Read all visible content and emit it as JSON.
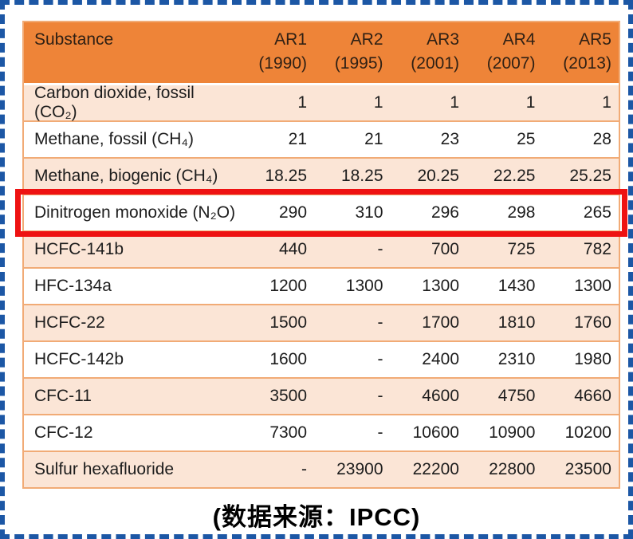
{
  "chart_data": {
    "type": "table",
    "header": {
      "substance_label": "Substance",
      "reports": [
        {
          "name": "AR1",
          "year": "(1990)"
        },
        {
          "name": "AR2",
          "year": "(1995)"
        },
        {
          "name": "AR3",
          "year": "(2001)"
        },
        {
          "name": "AR4",
          "year": "(2007)"
        },
        {
          "name": "AR5",
          "year": "(2013)"
        }
      ]
    },
    "rows": [
      {
        "substance": "Carbon dioxide, fossil (CO₂)",
        "values": [
          "1",
          "1",
          "1",
          "1",
          "1"
        ],
        "highlighted": false
      },
      {
        "substance": "Methane, fossil (CH₄)",
        "values": [
          "21",
          "21",
          "23",
          "25",
          "28"
        ],
        "highlighted": false
      },
      {
        "substance": "Methane, biogenic (CH₄)",
        "values": [
          "18.25",
          "18.25",
          "20.25",
          "22.25",
          "25.25"
        ],
        "highlighted": false
      },
      {
        "substance": "Dinitrogen monoxide (N₂O)",
        "values": [
          "290",
          "310",
          "296",
          "298",
          "265"
        ],
        "highlighted": true
      },
      {
        "substance": "HCFC-141b",
        "values": [
          "440",
          "-",
          "700",
          "725",
          "782"
        ],
        "highlighted": false
      },
      {
        "substance": "HFC-134a",
        "values": [
          "1200",
          "1300",
          "1300",
          "1430",
          "1300"
        ],
        "highlighted": false
      },
      {
        "substance": "HCFC-22",
        "values": [
          "1500",
          "-",
          "1700",
          "1810",
          "1760"
        ],
        "highlighted": false
      },
      {
        "substance": "HCFC-142b",
        "values": [
          "1600",
          "-",
          "2400",
          "2310",
          "1980"
        ],
        "highlighted": false
      },
      {
        "substance": "CFC-11",
        "values": [
          "3500",
          "-",
          "4600",
          "4750",
          "4660"
        ],
        "highlighted": false
      },
      {
        "substance": "CFC-12",
        "values": [
          "7300",
          "-",
          "10600",
          "10900",
          "10200"
        ],
        "highlighted": false
      },
      {
        "substance": "Sulfur hexafluoride",
        "values": [
          "-",
          "23900",
          "22200",
          "22800",
          "23500"
        ],
        "highlighted": false
      }
    ],
    "highlighted_substance": "Dinitrogen monoxide (N₂O)",
    "layout": {
      "banded_rows": true,
      "legend": "none",
      "grid": "horizontal-only"
    }
  },
  "caption": "(数据来源：IPCC)",
  "colors": {
    "header_fill": "#ee8438",
    "band_fill": "#fbe5d6",
    "row_border": "#f1ab76",
    "header_text": "#2f2014",
    "body_text": "#1d1d1d",
    "highlight_border": "#ee1212",
    "frame_border": "#1c57a5"
  }
}
